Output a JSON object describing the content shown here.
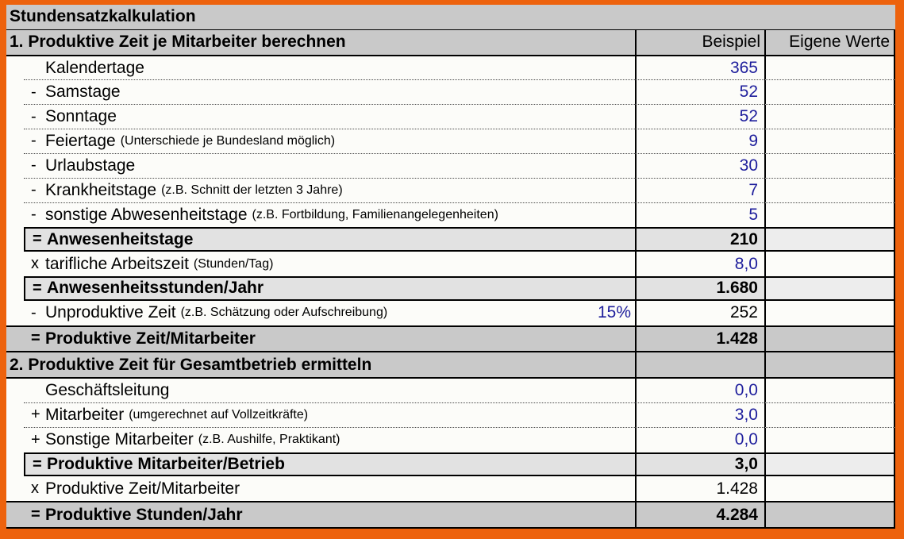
{
  "title": "Stundensatzkalkulation",
  "header": {
    "section": "1. Produktive Zeit je Mitarbeiter berechnen",
    "beispiel": "Beispiel",
    "eigene": "Eigene Werte"
  },
  "rows": [
    {
      "prefix": "",
      "label": "Kalendertage",
      "beispiel": "365",
      "eigene": ""
    },
    {
      "prefix": "-",
      "label": "Samstage",
      "beispiel": "52",
      "eigene": ""
    },
    {
      "prefix": "-",
      "label": "Sonntage",
      "beispiel": "52",
      "eigene": ""
    },
    {
      "prefix": "-",
      "label": "Feiertage",
      "note": "(Unterschiede je Bundesland möglich)",
      "beispiel": "9",
      "eigene": ""
    },
    {
      "prefix": "-",
      "label": "Urlaubstage",
      "beispiel": "30",
      "eigene": ""
    },
    {
      "prefix": "-",
      "label": "Krankheitstage",
      "note": "(z.B. Schnitt der letzten 3 Jahre)",
      "beispiel": "7",
      "eigene": ""
    },
    {
      "prefix": "-",
      "label": "sonstige Abwesenheitstage",
      "note": "(z.B. Fortbildung, Familienangelegenheiten)",
      "beispiel": "5",
      "eigene": ""
    },
    {
      "prefix": "=",
      "label": "Anwesenheitstage",
      "beispiel": "210",
      "eigene": ""
    },
    {
      "prefix": "x",
      "label": "tarifliche Arbeitszeit",
      "note": "(Stunden/Tag)",
      "beispiel": "8,0",
      "eigene": ""
    },
    {
      "prefix": "=",
      "label": "Anwesenheitsstunden/Jahr",
      "beispiel": "1.680",
      "eigene": ""
    },
    {
      "prefix": "-",
      "label": "Unproduktive Zeit",
      "note": "(z.B. Schätzung oder Aufschreibung)",
      "extra": "15%",
      "beispiel": "252",
      "eigene": ""
    },
    {
      "prefix": "=",
      "label": "Produktive Zeit/Mitarbeiter",
      "beispiel": "1.428",
      "eigene": ""
    },
    {
      "label": "2. Produktive Zeit für Gesamtbetrieb ermitteln",
      "beispiel": "",
      "eigene": ""
    },
    {
      "prefix": "",
      "label": "Geschäftsleitung",
      "beispiel": "0,0",
      "eigene": ""
    },
    {
      "prefix": "+",
      "label": "Mitarbeiter",
      "note": "(umgerechnet auf Vollzeitkräfte)",
      "beispiel": "3,0",
      "eigene": ""
    },
    {
      "prefix": "+",
      "label": "Sonstige Mitarbeiter",
      "note": "(z.B. Aushilfe, Praktikant)",
      "beispiel": "0,0",
      "eigene": ""
    },
    {
      "prefix": "=",
      "label": "Produktive Mitarbeiter/Betrieb",
      "beispiel": "3,0",
      "eigene": ""
    },
    {
      "prefix": "x",
      "label": "Produktive Zeit/Mitarbeiter",
      "beispiel": "1.428",
      "eigene": ""
    },
    {
      "prefix": "=",
      "label": "Produktive Stunden/Jahr",
      "beispiel": "4.284",
      "eigene": ""
    }
  ],
  "colors": {
    "accent": "#ED620D",
    "value": "#1E1E9C",
    "band": "#C9C9C9",
    "sub": "#E2E2E2",
    "sublight": "#EDEDED",
    "paper": "#FCFCF9"
  }
}
